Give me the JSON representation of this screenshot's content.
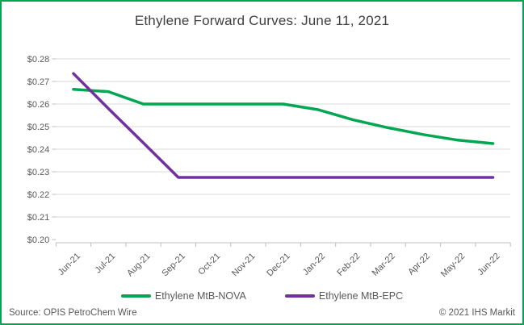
{
  "window": {
    "border_color": "#00A651",
    "background": "#ffffff"
  },
  "chart_data": {
    "type": "line",
    "title": "Ethylene Forward Curves: June 11, 2021",
    "categories": [
      "Jun-21",
      "Jul-21",
      "Aug-21",
      "Sep-21",
      "Oct-21",
      "Nov-21",
      "Dec-21",
      "Jan-22",
      "Feb-22",
      "Mar-22",
      "Apr-22",
      "May-22",
      "Jun-22"
    ],
    "series": [
      {
        "name": "Ethylene MtB-NOVA",
        "color": "#00A651",
        "values": [
          0.2665,
          0.2655,
          0.26,
          0.26,
          0.26,
          0.26,
          0.26,
          0.2575,
          0.253,
          0.2495,
          0.2465,
          0.244,
          0.2425
        ]
      },
      {
        "name": "Ethylene MtB-EPC",
        "color": "#7030A0",
        "values": [
          0.2735,
          0.258,
          0.2428,
          0.2275,
          0.2275,
          0.2275,
          0.2275,
          0.2275,
          0.2275,
          0.2275,
          0.2275,
          0.2275,
          0.2275
        ]
      }
    ],
    "ylim": [
      0.2,
      0.28
    ],
    "ytick_step": 0.01,
    "ytick_labels": [
      "$0.28",
      "$0.27",
      "$0.26",
      "$0.25",
      "$0.24",
      "$0.23",
      "$0.22",
      "$0.21",
      "$0.20"
    ],
    "xlabel": "",
    "ylabel": "",
    "grid": "horizontal",
    "gridline_color": "#D9D9D9",
    "axis_color": "#BFBFBF",
    "label_color": "#595959",
    "title_color": "#404040",
    "legend_position": "bottom"
  },
  "footer": {
    "source": "Source: OPIS PetroChem Wire",
    "copyright": "© 2021 IHS Markit"
  }
}
